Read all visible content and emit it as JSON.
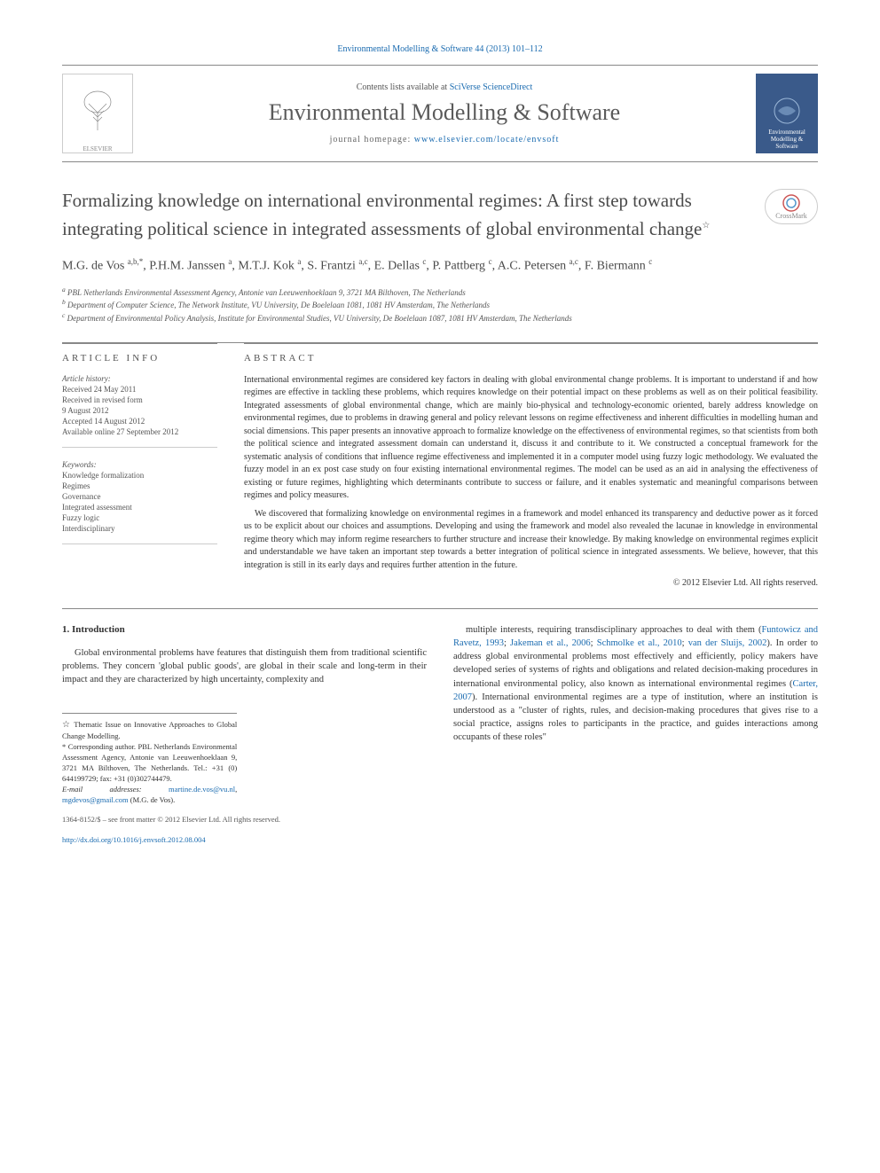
{
  "top_reference": "Environmental Modelling & Software 44 (2013) 101–112",
  "header": {
    "contents_pre": "Contents lists available at ",
    "contents_link": "SciVerse ScienceDirect",
    "journal_name": "Environmental Modelling & Software",
    "homepage_pre": "journal homepage: ",
    "homepage_link": "www.elsevier.com/locate/envsoft",
    "publisher": "ELSEVIER"
  },
  "crossmark": "CrossMark",
  "title": "Formalizing knowledge on international environmental regimes: A first step towards integrating political science in integrated assessments of global environmental change",
  "title_note": "☆",
  "authors_html": "M.G. de Vos <sup>a,b,*</sup>, P.H.M. Janssen <sup>a</sup>, M.T.J. Kok <sup>a</sup>, S. Frantzi <sup>a,c</sup>, E. Dellas <sup>c</sup>, P. Pattberg <sup>c</sup>, A.C. Petersen <sup>a,c</sup>, F. Biermann <sup>c</sup>",
  "affiliations": {
    "a": "PBL Netherlands Environmental Assessment Agency, Antonie van Leeuwenhoeklaan 9, 3721 MA Bilthoven, The Netherlands",
    "b": "Department of Computer Science, The Network Institute, VU University, De Boelelaan 1081, 1081 HV Amsterdam, The Netherlands",
    "c": "Department of Environmental Policy Analysis, Institute for Environmental Studies, VU University, De Boelelaan 1087, 1081 HV Amsterdam, The Netherlands"
  },
  "article_info": {
    "heading": "ARTICLE INFO",
    "history_label": "Article history:",
    "history": [
      "Received 24 May 2011",
      "Received in revised form",
      "9 August 2012",
      "Accepted 14 August 2012",
      "Available online 27 September 2012"
    ],
    "keywords_label": "Keywords:",
    "keywords": [
      "Knowledge formalization",
      "Regimes",
      "Governance",
      "Integrated assessment",
      "Fuzzy logic",
      "Interdisciplinary"
    ]
  },
  "abstract": {
    "heading": "ABSTRACT",
    "para1": "International environmental regimes are considered key factors in dealing with global environmental change problems. It is important to understand if and how regimes are effective in tackling these problems, which requires knowledge on their potential impact on these problems as well as on their political feasibility. Integrated assessments of global environmental change, which are mainly bio-physical and technology-economic oriented, barely address knowledge on environmental regimes, due to problems in drawing general and policy relevant lessons on regime effectiveness and inherent difficulties in modelling human and social dimensions. This paper presents an innovative approach to formalize knowledge on the effectiveness of environmental regimes, so that scientists from both the political science and integrated assessment domain can understand it, discuss it and contribute to it. We constructed a conceptual framework for the systematic analysis of conditions that influence regime effectiveness and implemented it in a computer model using fuzzy logic methodology. We evaluated the fuzzy model in an ex post case study on four existing international environmental regimes. The model can be used as an aid in analysing the effectiveness of existing or future regimes, highlighting which determinants contribute to success or failure, and it enables systematic and meaningful comparisons between regimes and policy measures.",
    "para2": "We discovered that formalizing knowledge on environmental regimes in a framework and model enhanced its transparency and deductive power as it forced us to be explicit about our choices and assumptions. Developing and using the framework and model also revealed the lacunae in knowledge in environmental regime theory which may inform regime researchers to further structure and increase their knowledge. By making knowledge on environmental regimes explicit and understandable we have taken an important step towards a better integration of political science in integrated assessments. We believe, however, that this integration is still in its early days and requires further attention in the future.",
    "copyright": "© 2012 Elsevier Ltd. All rights reserved."
  },
  "body": {
    "section_heading": "1. Introduction",
    "col1_p1": "Global environmental problems have features that distinguish them from traditional scientific problems. They concern 'global public goods', are global in their scale and long-term in their impact and they are characterized by high uncertainty, complexity and",
    "col2_p1_pre": "multiple interests, requiring transdisciplinary approaches to deal with them (",
    "col2_cite1": "Funtowicz and Ravetz, 1993",
    "col2_cite2": "Jakeman et al., 2006",
    "col2_cite3": "Schmolke et al., 2010",
    "col2_cite4": "van der Sluijs, 2002",
    "col2_p1_mid": "). In order to address global environmental problems most effectively and efficiently, policy makers have developed series of systems of rights and obligations and related decision-making procedures in international environmental policy, also known as international environmental regimes (",
    "col2_cite5": "Carter, 2007",
    "col2_p1_post": "). International environmental regimes are a type of institution, where an institution is understood as a \"cluster of rights, rules, and decision-making procedures that gives rise to a social practice, assigns roles to participants in the practice, and guides interactions among occupants of these roles\""
  },
  "footnotes": {
    "thematic": "Thematic Issue on Innovative Approaches to Global Change Modelling.",
    "corresponding": "Corresponding author. PBL Netherlands Environmental Assessment Agency, Antonie van Leeuwenhoeklaan 9, 3721 MA Bilthoven, The Netherlands. Tel.: +31 (0) 644199729; fax: +31 (0)302744479.",
    "email_label": "E-mail addresses:",
    "email1": "martine.de.vos@vu.nl",
    "email2": "mgdevos@gmail.com",
    "email_post": " (M.G. de Vos)."
  },
  "footer": {
    "front_matter": "1364-8152/$ – see front matter © 2012 Elsevier Ltd. All rights reserved.",
    "doi": "http://dx.doi.org/10.1016/j.envsoft.2012.08.004"
  },
  "colors": {
    "link": "#1a6bb0",
    "text": "#333333",
    "muted": "#555555",
    "cover_bg": "#3a5a8a"
  }
}
